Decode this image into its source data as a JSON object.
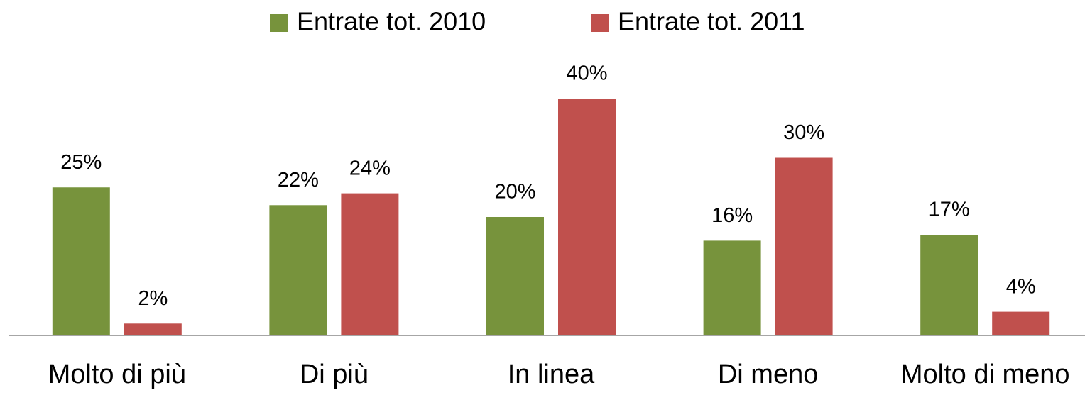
{
  "chart_data": {
    "type": "bar",
    "categories": [
      "Molto di più",
      "Di più",
      "In linea",
      "Di meno",
      "Molto di meno"
    ],
    "series": [
      {
        "name": "Entrate tot. 2010",
        "color": "#77933c",
        "values": [
          25,
          22,
          20,
          16,
          17
        ],
        "value_labels": [
          "25%",
          "22%",
          "20%",
          "16%",
          "17%"
        ]
      },
      {
        "name": "Entrate tot. 2011",
        "color": "#c0504d",
        "values": [
          2,
          24,
          40,
          30,
          4
        ],
        "value_labels": [
          "2%",
          "24%",
          "40%",
          "30%",
          "4%"
        ]
      }
    ],
    "legend": "top"
  }
}
